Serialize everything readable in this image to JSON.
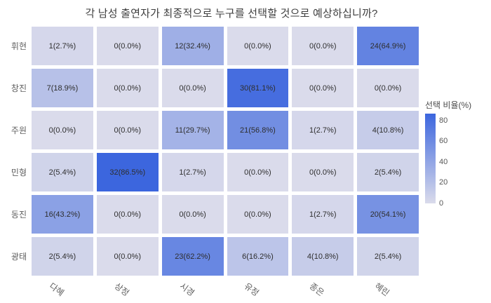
{
  "title": "각 남성 출연자가 최종적으로 누구를 선택할 것으로 예상하십니까?",
  "chart_data": {
    "type": "heatmap",
    "rows": [
      "휘현",
      "창진",
      "주원",
      "민형",
      "동진",
      "광태"
    ],
    "columns": [
      "다혜",
      "상정",
      "시경",
      "유정",
      "종은",
      "혜린"
    ],
    "counts": [
      [
        1,
        0,
        12,
        0,
        0,
        24
      ],
      [
        7,
        0,
        0,
        30,
        0,
        0
      ],
      [
        0,
        0,
        11,
        21,
        1,
        4
      ],
      [
        2,
        32,
        1,
        0,
        0,
        2
      ],
      [
        16,
        0,
        0,
        0,
        1,
        20
      ],
      [
        2,
        0,
        23,
        6,
        4,
        2
      ]
    ],
    "percents": [
      [
        2.7,
        0.0,
        32.4,
        0.0,
        0.0,
        64.9
      ],
      [
        18.9,
        0.0,
        0.0,
        81.1,
        0.0,
        0.0
      ],
      [
        0.0,
        0.0,
        29.7,
        56.8,
        2.7,
        10.8
      ],
      [
        5.4,
        86.5,
        2.7,
        0.0,
        0.0,
        5.4
      ],
      [
        43.2,
        0.0,
        0.0,
        0.0,
        2.7,
        54.1
      ],
      [
        5.4,
        0.0,
        62.2,
        16.2,
        10.8,
        5.4
      ]
    ],
    "cell_label_format": "count(percent%)",
    "legend": {
      "title": "선택 비율(%)",
      "ticks": [
        80,
        60,
        40,
        20,
        0
      ]
    },
    "scale": {
      "min": 0,
      "max": 86.5,
      "color_low": "#dadbeb",
      "color_high": "#3c66de"
    },
    "grid_gap_color": "#ffffff"
  }
}
